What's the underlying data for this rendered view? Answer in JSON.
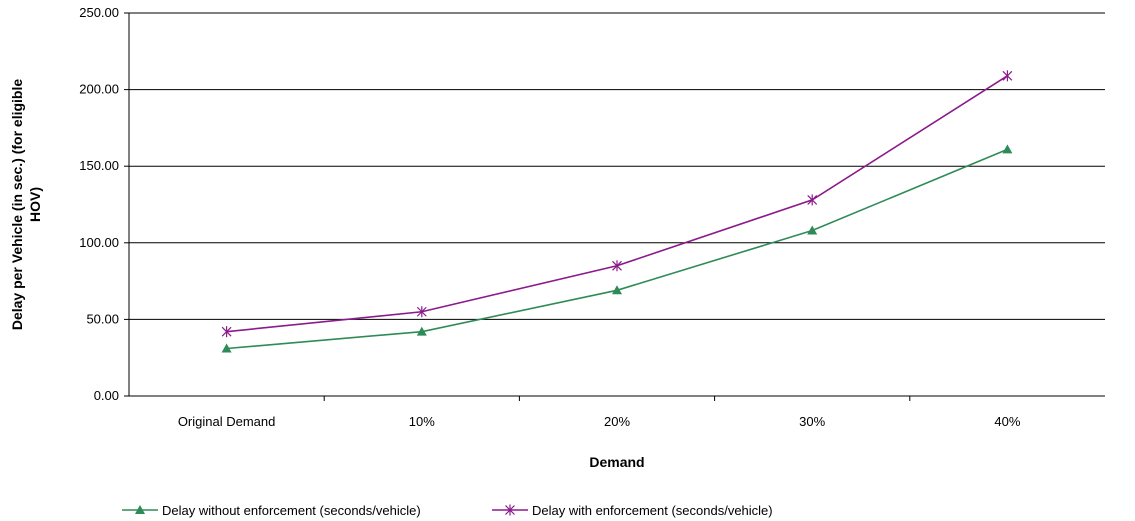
{
  "chart_data": {
    "type": "line",
    "title": "",
    "xlabel": "Demand",
    "ylabel_lines": [
      "Delay per Vehicle (in sec.) (for eligible",
      "HOV)"
    ],
    "categories": [
      "Original Demand",
      "10%",
      "20%",
      "30%",
      "40%"
    ],
    "y_ticks": [
      "0.00",
      "50.00",
      "100.00",
      "150.00",
      "200.00",
      "250.00"
    ],
    "ylim": [
      0,
      250
    ],
    "grid": "horizontal",
    "legend_position": "bottom",
    "series": [
      {
        "name": "Delay without enforcement (seconds/vehicle)",
        "values": [
          31,
          42,
          69,
          108,
          161
        ],
        "color": "#2e8b57",
        "marker": "triangle"
      },
      {
        "name": "Delay with enforcement (seconds/vehicle)",
        "values": [
          42,
          55,
          85,
          128,
          209
        ],
        "color": "#8b1a8b",
        "marker": "star"
      }
    ]
  }
}
